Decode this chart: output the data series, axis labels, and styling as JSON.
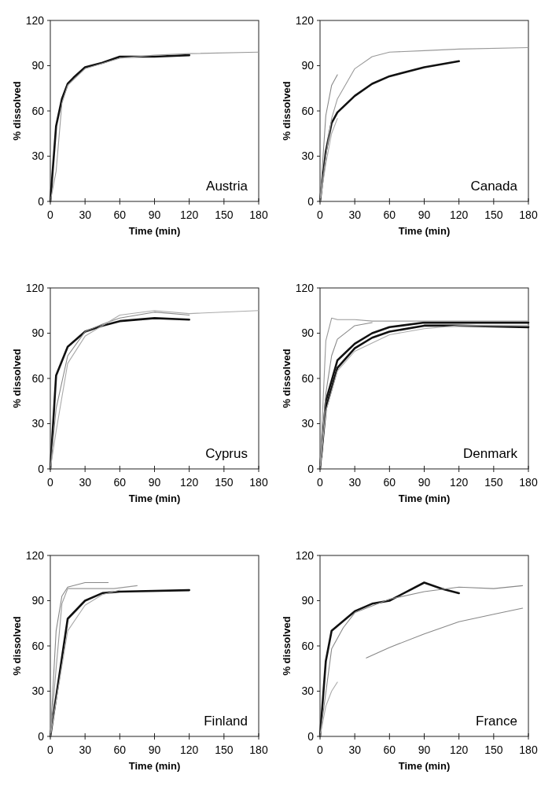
{
  "chart_data": [
    {
      "type": "line",
      "xlabel": "Time (min)",
      "ylabel": "% dissolved",
      "annotations": [
        "Austria"
      ],
      "xlim": [
        0,
        180
      ],
      "xticks": [
        0,
        30,
        60,
        90,
        120,
        150,
        180
      ],
      "ylim": [
        0,
        120
      ],
      "yticks": [
        0,
        30,
        60,
        90,
        120
      ],
      "series": [
        {
          "color": "#111111",
          "x": [
            0,
            5,
            10,
            15,
            20,
            30,
            45,
            60,
            90,
            120
          ],
          "values": [
            0,
            50,
            68,
            78,
            82,
            89,
            92,
            96,
            96,
            97
          ]
        },
        {
          "color": "#999999",
          "x": [
            0,
            5,
            10,
            15,
            30,
            60,
            90,
            120,
            180
          ],
          "values": [
            0,
            20,
            65,
            77,
            88,
            95,
            97,
            98,
            99
          ]
        }
      ]
    },
    {
      "type": "line",
      "xlabel": "Time (min)",
      "ylabel": "% dissolved",
      "annotations": [
        "Canada"
      ],
      "xlim": [
        0,
        180
      ],
      "xticks": [
        0,
        30,
        60,
        90,
        120,
        150,
        180
      ],
      "ylim": [
        0,
        120
      ],
      "yticks": [
        0,
        30,
        60,
        90,
        120
      ],
      "series": [
        {
          "color": "#111111",
          "x": [
            0,
            5,
            10,
            15,
            30,
            45,
            60,
            90,
            120
          ],
          "values": [
            0,
            33,
            52,
            59,
            70,
            78,
            83,
            89,
            93
          ]
        },
        {
          "color": "#888888",
          "x": [
            0,
            5,
            10,
            15
          ],
          "values": [
            0,
            57,
            77,
            84
          ]
        },
        {
          "color": "#999999",
          "x": [
            0,
            5,
            10,
            15,
            30,
            45,
            60,
            90,
            120,
            180
          ],
          "values": [
            0,
            30,
            55,
            68,
            88,
            96,
            99,
            100,
            101,
            102
          ]
        },
        {
          "color": "#aaaaaa",
          "x": [
            0,
            5,
            10,
            15
          ],
          "values": [
            0,
            25,
            45,
            55
          ]
        }
      ]
    },
    {
      "type": "line",
      "xlabel": "Time (min)",
      "ylabel": "% dissolved",
      "annotations": [
        "Cyprus"
      ],
      "xlim": [
        0,
        180
      ],
      "xticks": [
        0,
        30,
        60,
        90,
        120,
        150,
        180
      ],
      "ylim": [
        0,
        120
      ],
      "yticks": [
        0,
        30,
        60,
        90,
        120
      ],
      "series": [
        {
          "color": "#111111",
          "x": [
            0,
            5,
            15,
            30,
            45,
            60,
            90,
            120
          ],
          "values": [
            0,
            62,
            81,
            91,
            95,
            98,
            100,
            99
          ]
        },
        {
          "color": "#888888",
          "x": [
            0,
            5,
            15,
            30,
            45,
            60,
            90,
            120
          ],
          "values": [
            0,
            40,
            75,
            91,
            96,
            100,
            104,
            102
          ]
        },
        {
          "color": "#aaaaaa",
          "x": [
            0,
            5,
            15,
            30,
            60,
            90,
            120,
            180
          ],
          "values": [
            0,
            25,
            70,
            88,
            102,
            105,
            103,
            105
          ]
        }
      ]
    },
    {
      "type": "line",
      "xlabel": "Time (min)",
      "ylabel": "% dissolved",
      "annotations": [
        "Denmark"
      ],
      "xlim": [
        0,
        180
      ],
      "xticks": [
        0,
        30,
        60,
        90,
        120,
        150,
        180
      ],
      "ylim": [
        0,
        120
      ],
      "yticks": [
        0,
        30,
        60,
        90,
        120
      ],
      "series": [
        {
          "color": "#111111",
          "x": [
            0,
            5,
            15,
            30,
            45,
            60,
            90,
            120,
            180
          ],
          "values": [
            0,
            45,
            72,
            83,
            90,
            94,
            97,
            97,
            97
          ]
        },
        {
          "color": "#111111",
          "x": [
            1,
            5,
            15,
            30,
            45,
            60,
            90,
            120,
            180
          ],
          "values": [
            8,
            40,
            67,
            80,
            87,
            91,
            95,
            95,
            94
          ]
        },
        {
          "color": "#999999",
          "x": [
            0,
            5,
            10,
            15,
            30,
            45,
            60,
            120,
            180
          ],
          "values": [
            0,
            85,
            100,
            99,
            99,
            98,
            98,
            98,
            98
          ]
        },
        {
          "color": "#888888",
          "x": [
            0,
            5,
            10,
            15,
            30,
            45
          ],
          "values": [
            0,
            50,
            75,
            86,
            95,
            97
          ]
        },
        {
          "color": "#aaaaaa",
          "x": [
            0,
            5,
            15,
            30,
            60,
            90,
            120,
            180
          ],
          "values": [
            0,
            38,
            65,
            78,
            89,
            93,
            95,
            95
          ]
        }
      ]
    },
    {
      "type": "line",
      "xlabel": "Time (min)",
      "ylabel": "% dissolved",
      "annotations": [
        "Finland"
      ],
      "xlim": [
        0,
        180
      ],
      "xticks": [
        0,
        30,
        60,
        90,
        120,
        150,
        180
      ],
      "ylim": [
        0,
        120
      ],
      "yticks": [
        0,
        30,
        60,
        90,
        120
      ],
      "series": [
        {
          "color": "#111111",
          "x": [
            0,
            15,
            30,
            45,
            60,
            120
          ],
          "values": [
            0,
            78,
            90,
            95,
            96,
            97
          ]
        },
        {
          "color": "#888888",
          "x": [
            0,
            5,
            10,
            15,
            30,
            50
          ],
          "values": [
            0,
            70,
            93,
            99,
            102,
            102
          ]
        },
        {
          "color": "#999999",
          "x": [
            0,
            5,
            10,
            15,
            30,
            55,
            75
          ],
          "values": [
            0,
            45,
            88,
            98,
            98,
            98,
            100
          ]
        },
        {
          "color": "#aaaaaa",
          "x": [
            0,
            15,
            30,
            45,
            60
          ],
          "values": [
            0,
            70,
            87,
            94,
            97
          ]
        }
      ]
    },
    {
      "type": "line",
      "xlabel": "Time (min)",
      "ylabel": "% dissolved",
      "annotations": [
        "France"
      ],
      "xlim": [
        0,
        180
      ],
      "xticks": [
        0,
        30,
        60,
        90,
        120,
        150,
        180
      ],
      "ylim": [
        0,
        120
      ],
      "yticks": [
        0,
        30,
        60,
        90,
        120
      ],
      "series": [
        {
          "color": "#111111",
          "x": [
            0,
            5,
            10,
            30,
            45,
            60,
            90,
            105,
            120
          ],
          "values": [
            0,
            50,
            70,
            83,
            88,
            90,
            102,
            98,
            95
          ]
        },
        {
          "color": "#888888",
          "x": [
            0,
            10,
            20,
            30,
            60,
            90,
            120,
            150,
            175
          ],
          "values": [
            0,
            58,
            72,
            82,
            91,
            96,
            99,
            98,
            100
          ]
        },
        {
          "color": "#aaaaaa",
          "x": [
            0,
            5,
            10,
            15
          ],
          "values": [
            0,
            20,
            30,
            36
          ]
        },
        {
          "color": "#888888",
          "x": [
            40,
            60,
            90,
            120,
            150,
            175
          ],
          "values": [
            52,
            59,
            68,
            76,
            81,
            85
          ]
        }
      ]
    }
  ]
}
